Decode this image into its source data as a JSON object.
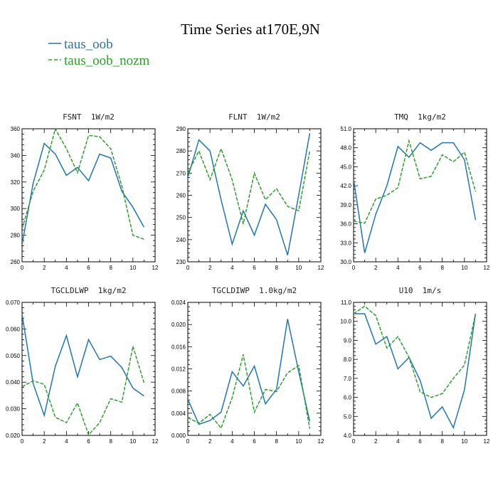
{
  "figure": {
    "title": "Time Series at170E,9N"
  },
  "legend": [
    {
      "name": "taus_oob",
      "color": "#1f77b4",
      "dash": "solid"
    },
    {
      "name": "taus_oob_nozm",
      "color": "#2ca02c",
      "dash": "dashed"
    }
  ],
  "chart_data": [
    {
      "type": "line",
      "title": "FSNT  1W/m2",
      "x": [
        0,
        1,
        2,
        3,
        4,
        5,
        6,
        7,
        8,
        9,
        10,
        11
      ],
      "xlim": [
        0,
        12
      ],
      "xticks": [
        "0",
        "2",
        "4",
        "6",
        "8",
        "10",
        "12"
      ],
      "ylim": [
        260,
        360
      ],
      "yticks": [
        "260",
        "280",
        "300",
        "320",
        "340",
        "360"
      ],
      "series": [
        {
          "name": "taus_oob",
          "values": [
            273,
            319,
            349,
            341,
            325,
            331,
            321,
            341,
            338,
            313,
            301,
            286
          ]
        },
        {
          "name": "taus_oob_nozm",
          "values": [
            285,
            313,
            329,
            360,
            345,
            327,
            355,
            354,
            345,
            317,
            280,
            277
          ]
        }
      ]
    },
    {
      "type": "line",
      "title": "FLNT  1W/m2",
      "x": [
        0,
        1,
        2,
        3,
        4,
        5,
        6,
        7,
        8,
        9,
        10,
        11
      ],
      "xlim": [
        0,
        12
      ],
      "xticks": [
        "0",
        "2",
        "4",
        "6",
        "8",
        "10",
        "12"
      ],
      "ylim": [
        230,
        290
      ],
      "yticks": [
        "230",
        "240",
        "250",
        "260",
        "270",
        "280",
        "290"
      ],
      "series": [
        {
          "name": "taus_oob",
          "values": [
            268,
            285,
            280,
            258,
            238,
            253,
            242,
            256,
            249,
            233,
            260,
            288
          ]
        },
        {
          "name": "taus_oob_nozm",
          "values": [
            270,
            280,
            267,
            281,
            267,
            247,
            270,
            258,
            263,
            255,
            253,
            280
          ]
        }
      ]
    },
    {
      "type": "line",
      "title": "TMQ  1kg/m2",
      "x": [
        0,
        1,
        2,
        3,
        4,
        5,
        6,
        7,
        8,
        9,
        10,
        11
      ],
      "xlim": [
        0,
        12
      ],
      "xticks": [
        "0",
        "2",
        "4",
        "6",
        "8",
        "10",
        "12"
      ],
      "ylim": [
        30,
        51
      ],
      "yticks": [
        "30.0",
        "33.0",
        "36.0",
        "39.0",
        "42.0",
        "45.0",
        "48.0",
        "51.0"
      ],
      "series": [
        {
          "name": "taus_oob",
          "values": [
            43.0,
            31.4,
            37.5,
            42.0,
            48.2,
            46.5,
            48.8,
            47.6,
            48.8,
            48.8,
            46.1,
            36.6
          ]
        },
        {
          "name": "taus_oob_nozm",
          "values": [
            36.4,
            36.1,
            39.9,
            40.5,
            41.7,
            49.1,
            43.1,
            43.5,
            46.9,
            45.8,
            47.3,
            41.1
          ]
        }
      ]
    },
    {
      "type": "line",
      "title": "TGCLDLWP  1kg/m2",
      "x": [
        0,
        1,
        2,
        3,
        4,
        5,
        6,
        7,
        8,
        9,
        10,
        11
      ],
      "xlim": [
        0,
        12
      ],
      "xticks": [
        "0",
        "2",
        "4",
        "6",
        "8",
        "10",
        "12"
      ],
      "ylim": [
        0.02,
        0.07
      ],
      "yticks": [
        "0.020",
        "0.030",
        "0.040",
        "0.050",
        "0.060",
        "0.070"
      ],
      "series": [
        {
          "name": "taus_oob",
          "values": [
            0.0655,
            0.0395,
            0.0275,
            0.046,
            0.0575,
            0.042,
            0.056,
            0.0485,
            0.0498,
            0.0455,
            0.0378,
            0.0348
          ]
        },
        {
          "name": "taus_oob_nozm",
          "values": [
            0.0383,
            0.0405,
            0.0392,
            0.0268,
            0.0248,
            0.0322,
            0.0202,
            0.0248,
            0.0338,
            0.0325,
            0.0535,
            0.0398
          ]
        }
      ]
    },
    {
      "type": "line",
      "title": "TGCLDIWP  1.0kg/m2",
      "x": [
        0,
        1,
        2,
        3,
        4,
        5,
        6,
        7,
        8,
        9,
        10,
        11
      ],
      "xlim": [
        0,
        12
      ],
      "xticks": [
        "0",
        "2",
        "4",
        "6",
        "8",
        "10",
        "12"
      ],
      "ylim": [
        0,
        0.024
      ],
      "yticks": [
        "0.000",
        "0.004",
        "0.008",
        "0.012",
        "0.016",
        "0.020",
        "0.024"
      ],
      "series": [
        {
          "name": "taus_oob",
          "values": [
            0.0065,
            0.002,
            0.0027,
            0.0042,
            0.0115,
            0.0089,
            0.0125,
            0.0057,
            0.0083,
            0.021,
            0.0115,
            0.0025
          ]
        },
        {
          "name": "taus_oob_nozm",
          "values": [
            0.0032,
            0.0022,
            0.0038,
            0.0013,
            0.0068,
            0.0146,
            0.0042,
            0.0083,
            0.0079,
            0.0113,
            0.0126,
            0.0012
          ]
        }
      ]
    },
    {
      "type": "line",
      "title": "U10  1m/s",
      "x": [
        0,
        1,
        2,
        3,
        4,
        5,
        6,
        7,
        8,
        9,
        10,
        11
      ],
      "xlim": [
        0,
        12
      ],
      "xticks": [
        "0",
        "2",
        "4",
        "6",
        "8",
        "10",
        "12"
      ],
      "ylim": [
        4.0,
        11.0
      ],
      "yticks": [
        "4.0",
        "5.0",
        "6.0",
        "7.0",
        "8.0",
        "9.0",
        "10.0",
        "11.0"
      ],
      "series": [
        {
          "name": "taus_oob",
          "values": [
            10.4,
            10.4,
            8.8,
            9.2,
            7.5,
            8.1,
            6.9,
            4.9,
            5.5,
            4.4,
            6.4,
            10.4
          ]
        },
        {
          "name": "taus_oob_nozm",
          "values": [
            10.4,
            10.8,
            10.3,
            8.6,
            9.2,
            8.1,
            6.3,
            6.0,
            6.2,
            7.0,
            7.7,
            10.4
          ]
        }
      ]
    }
  ]
}
